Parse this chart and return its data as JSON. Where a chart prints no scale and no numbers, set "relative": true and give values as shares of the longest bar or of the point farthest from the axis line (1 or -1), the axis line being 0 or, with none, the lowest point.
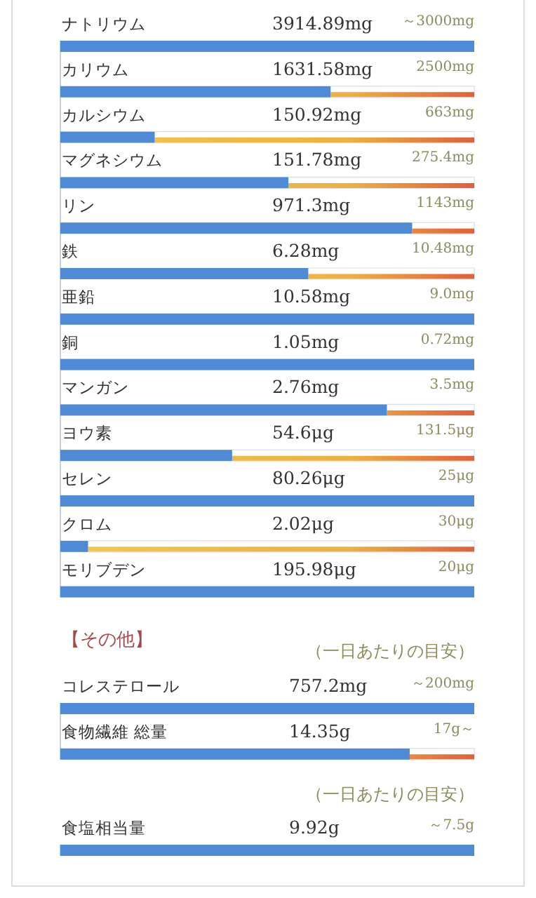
{
  "chart_data": [
    {
      "type": "bar",
      "orientation": "horizontal",
      "relative": true,
      "color": "#4f8ad6",
      "categories": [
        "ナトリウム",
        "カリウム",
        "カルシウム",
        "マグネシウム",
        "リン",
        "鉄",
        "亜鉛",
        "銅",
        "マンガン",
        "ヨウ素",
        "セレン",
        "クロム",
        "モリブデン"
      ],
      "values": [
        1,
        0.653,
        0.228,
        0.551,
        0.85,
        0.599,
        1,
        1,
        0.789,
        0.415,
        1,
        0.067,
        1
      ],
      "annotations": [
        "3914.89mg",
        "～3000mg",
        "1631.58mg",
        "2500mg",
        "150.92mg",
        "663mg",
        "151.78mg",
        "275.4mg",
        "971.3mg",
        "1143mg",
        "6.28mg",
        "10.48mg",
        "10.58mg",
        "9.0mg",
        "1.05mg",
        "0.72mg",
        "2.76mg",
        "3.5mg",
        "54.6μg",
        "131.5μg",
        "80.26μg",
        "25μg",
        "2.02μg",
        "30μg",
        "195.98μg",
        "20μg"
      ]
    },
    {
      "type": "bar",
      "orientation": "horizontal",
      "relative": true,
      "color": "#4f8ad6",
      "title": "【その他】",
      "subtitle": "（一日あたりの目安）",
      "categories": [
        "コレステロール",
        "食物繊維 総量"
      ],
      "values": [
        1,
        0.844
      ],
      "annotations": [
        "757.2mg",
        "～200mg",
        "14.35g",
        "17g～"
      ]
    },
    {
      "type": "bar",
      "orientation": "horizontal",
      "relative": true,
      "color": "#4f8ad6",
      "subtitle": "（一日あたりの目安）",
      "categories": [
        "食塩相当量"
      ],
      "values": [
        1
      ],
      "annotations": [
        "9.92g",
        "～7.5g"
      ]
    }
  ]
}
